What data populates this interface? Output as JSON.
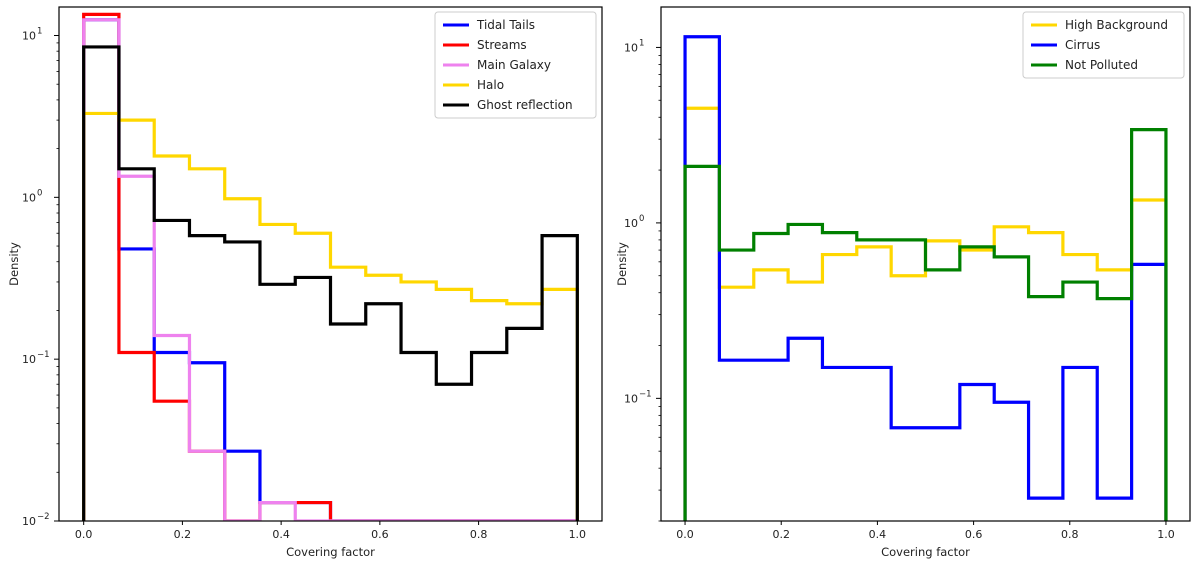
{
  "chart_data": [
    {
      "type": "step-histogram",
      "xlabel": "Covering factor",
      "ylabel": "Density",
      "yscale": "log",
      "xlim": [
        -0.05,
        1.05
      ],
      "ylim": [
        0.01,
        15
      ],
      "xticks": [
        {
          "v": 0.0,
          "label": "0.0"
        },
        {
          "v": 0.2,
          "label": "0.2"
        },
        {
          "v": 0.4,
          "label": "0.4"
        },
        {
          "v": 0.6,
          "label": "0.6"
        },
        {
          "v": 0.8,
          "label": "0.8"
        },
        {
          "v": 1.0,
          "label": "1.0"
        }
      ],
      "yticks": [
        {
          "v": 0.01,
          "base": "10",
          "exp": "−2"
        },
        {
          "v": 0.1,
          "base": "10",
          "exp": "−1"
        },
        {
          "v": 1,
          "base": "10",
          "exp": "0"
        },
        {
          "v": 10,
          "base": "10",
          "exp": "1"
        }
      ],
      "legend_position": "top-right",
      "bin_edges": [
        0,
        0.0714,
        0.1429,
        0.2143,
        0.2857,
        0.3571,
        0.4286,
        0.5,
        0.5714,
        0.6429,
        0.7143,
        0.7857,
        0.8571,
        0.9286,
        1.0
      ],
      "series": [
        {
          "name": "Tidal Tails",
          "color": "#0000ff",
          "values": [
            12.5,
            0.48,
            0.11,
            0.095,
            0.027,
            0.013,
            0.013,
            0,
            0,
            0,
            0,
            0,
            0,
            0
          ]
        },
        {
          "name": "Streams",
          "color": "#ff0000",
          "values": [
            13.5,
            0.11,
            0.055,
            0.027,
            0,
            0.013,
            0.013,
            0,
            0,
            0,
            0,
            0,
            0,
            0
          ]
        },
        {
          "name": "Main Galaxy",
          "color": "#ee82ee",
          "values": [
            12.5,
            1.35,
            0.14,
            0.027,
            0,
            0.013,
            0,
            0,
            0,
            0,
            0,
            0,
            0,
            0
          ]
        },
        {
          "name": "Halo",
          "color": "#ffd700",
          "values": [
            3.3,
            3.0,
            1.8,
            1.5,
            0.98,
            0.68,
            0.6,
            0.37,
            0.33,
            0.3,
            0.27,
            0.23,
            0.22,
            0.27
          ]
        },
        {
          "name": "Ghost reflection",
          "color": "#000000",
          "values": [
            8.5,
            1.5,
            0.72,
            0.58,
            0.53,
            0.29,
            0.32,
            0.165,
            0.22,
            0.11,
            0.07,
            0.11,
            0.155,
            0.58
          ]
        }
      ]
    },
    {
      "type": "step-histogram",
      "xlabel": "Covering factor",
      "ylabel": "Density",
      "yscale": "log",
      "xlim": [
        -0.05,
        1.05
      ],
      "ylim": [
        0.02,
        17
      ],
      "xticks": [
        {
          "v": 0.0,
          "label": "0.0"
        },
        {
          "v": 0.2,
          "label": "0.2"
        },
        {
          "v": 0.4,
          "label": "0.4"
        },
        {
          "v": 0.6,
          "label": "0.6"
        },
        {
          "v": 0.8,
          "label": "0.8"
        },
        {
          "v": 1.0,
          "label": "1.0"
        }
      ],
      "yticks": [
        {
          "v": 0.1,
          "base": "10",
          "exp": "−1"
        },
        {
          "v": 1,
          "base": "10",
          "exp": "0"
        },
        {
          "v": 10,
          "base": "10",
          "exp": "1"
        }
      ],
      "legend_position": "top-right",
      "bin_edges": [
        0,
        0.0714,
        0.1429,
        0.2143,
        0.2857,
        0.3571,
        0.4286,
        0.5,
        0.5714,
        0.6429,
        0.7143,
        0.7857,
        0.8571,
        0.9286,
        1.0
      ],
      "series": [
        {
          "name": "High Background",
          "color": "#ffd700",
          "values": [
            4.5,
            0.43,
            0.54,
            0.46,
            0.66,
            0.73,
            0.5,
            0.79,
            0.7,
            0.95,
            0.88,
            0.66,
            0.54,
            1.35
          ]
        },
        {
          "name": "Cirrus",
          "color": "#0000ff",
          "values": [
            11.5,
            0.165,
            0.165,
            0.22,
            0.15,
            0.15,
            0.068,
            0.068,
            0.12,
            0.095,
            0.027,
            0.15,
            0.027,
            0.58
          ]
        },
        {
          "name": "Not Polluted",
          "color": "#008000",
          "values": [
            2.1,
            0.7,
            0.87,
            0.98,
            0.88,
            0.8,
            0.8,
            0.54,
            0.73,
            0.64,
            0.38,
            0.46,
            0.37,
            3.4
          ]
        }
      ]
    }
  ]
}
